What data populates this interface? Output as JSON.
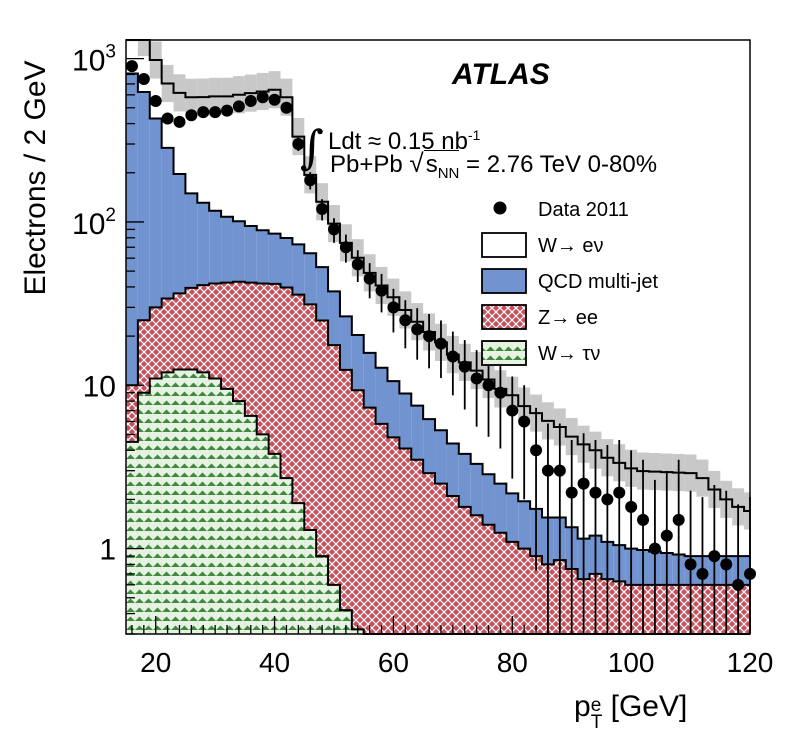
{
  "chart_data": {
    "type": "histogram-stacked",
    "ylabel": "Electrons / 2 GeV",
    "xlabel": "p_T^e [GeV]",
    "xlabel_main": "p",
    "xlabel_sup": "e",
    "xlabel_sub": "T",
    "xlabel_unit": "[GeV]",
    "xlim": [
      15,
      120
    ],
    "ylim": [
      0.3,
      1300
    ],
    "log_y": true,
    "x_ticks": [
      "20",
      "40",
      "60",
      "80",
      "100",
      "120"
    ],
    "y_ticks": [
      "1",
      "10",
      "10²",
      "10³"
    ],
    "annotations": {
      "experiment": "ATLAS",
      "lumi_int": "∫",
      "lumi": "Ldt ≈ 0.15 nb",
      "lumi_exp": "-1",
      "system_prefix": "Pb+Pb",
      "system_rad": "s",
      "system_rad_sub": "NN",
      "system_suffix": " = 2.76 TeV 0-80%"
    },
    "legend_position": "top-right",
    "legend": [
      {
        "label": "Data 2011",
        "style": "marker"
      },
      {
        "label": "W→ eν",
        "style": "line"
      },
      {
        "label": "QCD multi-jet",
        "style": "fill"
      },
      {
        "label": "Z→ ee",
        "style": "hatch-red"
      },
      {
        "label": "W→ τν",
        "style": "hatch-green"
      }
    ],
    "colors": {
      "qcd": "#7193d0",
      "zee": "#c9505b",
      "wtaunu": "#cfe6c7",
      "wtaunu_hatch": "#3f8a3f",
      "band": "#c8c8c8"
    },
    "bin_width": 2,
    "bin_low_edges": [
      15,
      17,
      19,
      21,
      23,
      25,
      27,
      29,
      31,
      33,
      35,
      37,
      39,
      41,
      43,
      45,
      47,
      49,
      51,
      53,
      55,
      57,
      59,
      61,
      63,
      65,
      67,
      69,
      71,
      73,
      75,
      77,
      79,
      81,
      83,
      85,
      87,
      89,
      91,
      93,
      95,
      97,
      99,
      101,
      103,
      105,
      107,
      109,
      111,
      113,
      115,
      117,
      119
    ],
    "series": [
      {
        "name": "W→ τν",
        "values": [
          4.5,
          9,
          11,
          12,
          12.5,
          12.5,
          12,
          11,
          9.5,
          8,
          6.5,
          5,
          3.8,
          2.7,
          1.9,
          1.3,
          0.9,
          0.6,
          0.42,
          0.32,
          0.3,
          0.3,
          0.3,
          0.3,
          0.3,
          0.3,
          0.3,
          0.3,
          0.3,
          0.3,
          0.3,
          0.3,
          0.3,
          0.3,
          0.3,
          0.3,
          0.3,
          0.3,
          0.3,
          0.3,
          0.3,
          0.3,
          0.3,
          0.3,
          0.3,
          0.3,
          0.3,
          0.3,
          0.3,
          0.3,
          0.3,
          0.3,
          0.3
        ]
      },
      {
        "name": "Z→ ee",
        "values": [
          5.5,
          16,
          19,
          22,
          24,
          27,
          29,
          31,
          33,
          35,
          36,
          37,
          38,
          37,
          34,
          30,
          24,
          17,
          12,
          9,
          7,
          5.5,
          4.5,
          3.8,
          3.2,
          2.6,
          2.2,
          1.8,
          1.5,
          1.3,
          1.1,
          0.95,
          0.8,
          0.7,
          0.6,
          0.5,
          0.55,
          0.45,
          0.35,
          0.4,
          0.35,
          0.33,
          0.3,
          0.3,
          0.3,
          0.3,
          0.3,
          0.3,
          0.3,
          0.3,
          0.3,
          0.3,
          0.3
        ]
      },
      {
        "name": "QCD multi-jet",
        "values": [
          800,
          600,
          400,
          250,
          160,
          110,
          90,
          75,
          65,
          58,
          52,
          47,
          43,
          40,
          37,
          33,
          28,
          20,
          14,
          11,
          8.5,
          7,
          5.8,
          4.8,
          4,
          3.3,
          2.8,
          2.3,
          2,
          1.7,
          1.45,
          1.25,
          1.08,
          0.95,
          0.85,
          0.75,
          0.7,
          0.6,
          0.5,
          0.5,
          0.45,
          0.42,
          0.4,
          0.38,
          0.36,
          0.34,
          0.32,
          0.3,
          0.3,
          0.3,
          0.3,
          0.3,
          0.3
        ]
      },
      {
        "name": "W→ eν",
        "values": [
          850,
          720,
          550,
          420,
          420,
          430,
          450,
          470,
          480,
          500,
          520,
          540,
          560,
          500,
          260,
          130,
          80,
          60,
          48,
          40,
          33,
          28,
          24,
          20,
          17,
          15,
          13,
          11,
          10,
          9,
          8,
          7,
          6.5,
          5.5,
          5,
          4.5,
          4,
          3.5,
          3.2,
          2.8,
          2.5,
          2.3,
          2.1,
          2,
          2,
          2,
          2,
          2,
          1.8,
          1.4,
          1.1,
          0.9,
          0.8
        ]
      },
      {
        "name": "Data 2011",
        "values": [
          900,
          750,
          550,
          430,
          410,
          450,
          470,
          470,
          480,
          510,
          550,
          580,
          560,
          500,
          300,
          180,
          120,
          90,
          70,
          55,
          45,
          38,
          30,
          25,
          22,
          20,
          18,
          15,
          13,
          11,
          10,
          9,
          7,
          6,
          4,
          3,
          3,
          2.2,
          2.5,
          2.2,
          2,
          2.2,
          1.8,
          1.5,
          1,
          1.2,
          1.5,
          0.8,
          0.7,
          0.9,
          0.8,
          0.6,
          0.7
        ]
      }
    ]
  }
}
